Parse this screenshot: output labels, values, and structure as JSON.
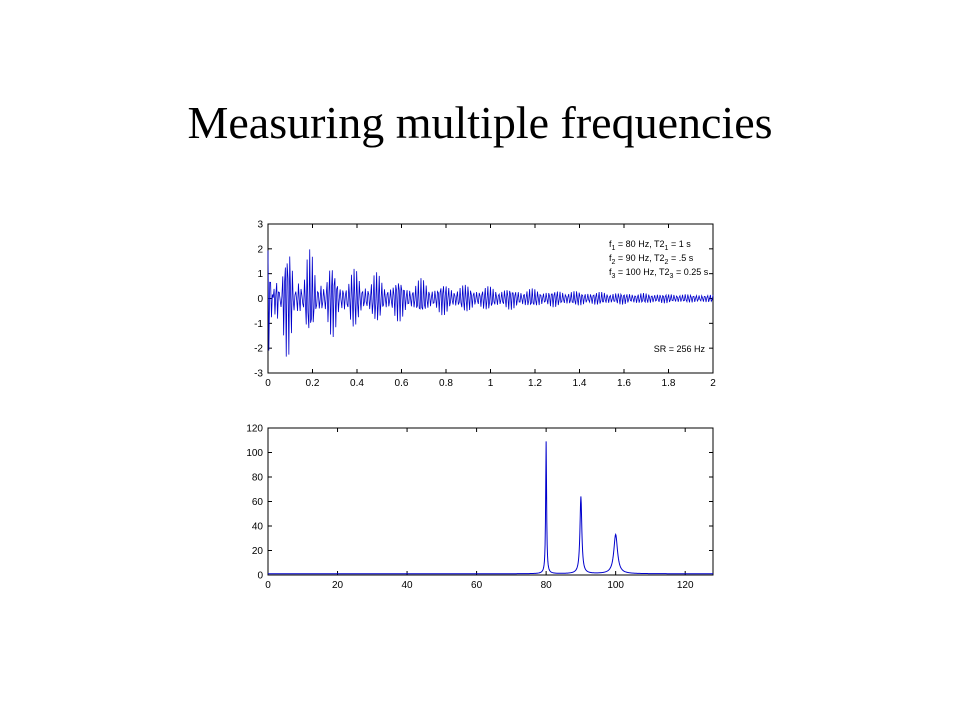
{
  "slide": {
    "title": "Measuring multiple frequencies"
  },
  "colors": {
    "trace": "#0000cc",
    "axes": "#000000",
    "background": "#ffffff"
  },
  "chart_data": [
    {
      "type": "line",
      "title": "",
      "xlabel": "",
      "ylabel": "",
      "xlim": [
        0,
        2
      ],
      "ylim": [
        -3,
        3
      ],
      "xticks": [
        0,
        0.2,
        0.4,
        0.6,
        0.8,
        1,
        1.2,
        1.4,
        1.6,
        1.8,
        2
      ],
      "xtick_labels": [
        "0",
        "0.2",
        "0.4",
        "0.6",
        "0.8",
        "1",
        "1.2",
        "1.4",
        "1.6",
        "1.8",
        "2"
      ],
      "yticks": [
        -3,
        -2,
        -1,
        0,
        1,
        2,
        3
      ],
      "ytick_labels": [
        "-3",
        "-2",
        "-1",
        "0",
        "1",
        "2",
        "3"
      ],
      "grid": false,
      "sample_rate_hz": 256,
      "components": [
        {
          "freq_hz": 80,
          "t2_s": 1
        },
        {
          "freq_hz": 90,
          "t2_s": 0.5
        },
        {
          "freq_hz": 100,
          "t2_s": 0.25
        }
      ],
      "annotations": {
        "lines": [
          {
            "f_sym": "f",
            "f_sub": "1",
            "f_rest": " = 80 Hz,  T2",
            "t_sub": "1",
            "t_rest": " = 1 s"
          },
          {
            "f_sym": "f",
            "f_sub": "2",
            "f_rest": " = 90 Hz,  T2",
            "t_sub": "2",
            "t_rest": " = .5 s"
          },
          {
            "f_sym": "f",
            "f_sub": "3",
            "f_rest": " = 100 Hz, T2",
            "t_sub": "3",
            "t_rest": " = 0.25 s"
          }
        ],
        "sample_rate": "SR = 256 Hz"
      }
    },
    {
      "type": "line",
      "title": "",
      "xlabel": "",
      "ylabel": "",
      "xlim": [
        0,
        128
      ],
      "ylim": [
        0,
        120
      ],
      "xticks": [
        0,
        20,
        40,
        60,
        80,
        100,
        120
      ],
      "xtick_labels": [
        "0",
        "20",
        "40",
        "60",
        "80",
        "100",
        "120"
      ],
      "yticks": [
        0,
        20,
        40,
        60,
        80,
        100,
        120
      ],
      "ytick_labels": [
        "0",
        "20",
        "40",
        "60",
        "80",
        "100",
        "120"
      ],
      "grid": false,
      "baseline": 1,
      "peaks": [
        {
          "freq_hz": 80,
          "height": 108
        },
        {
          "freq_hz": 90,
          "height": 63
        },
        {
          "freq_hz": 100,
          "height": 32
        }
      ]
    }
  ]
}
